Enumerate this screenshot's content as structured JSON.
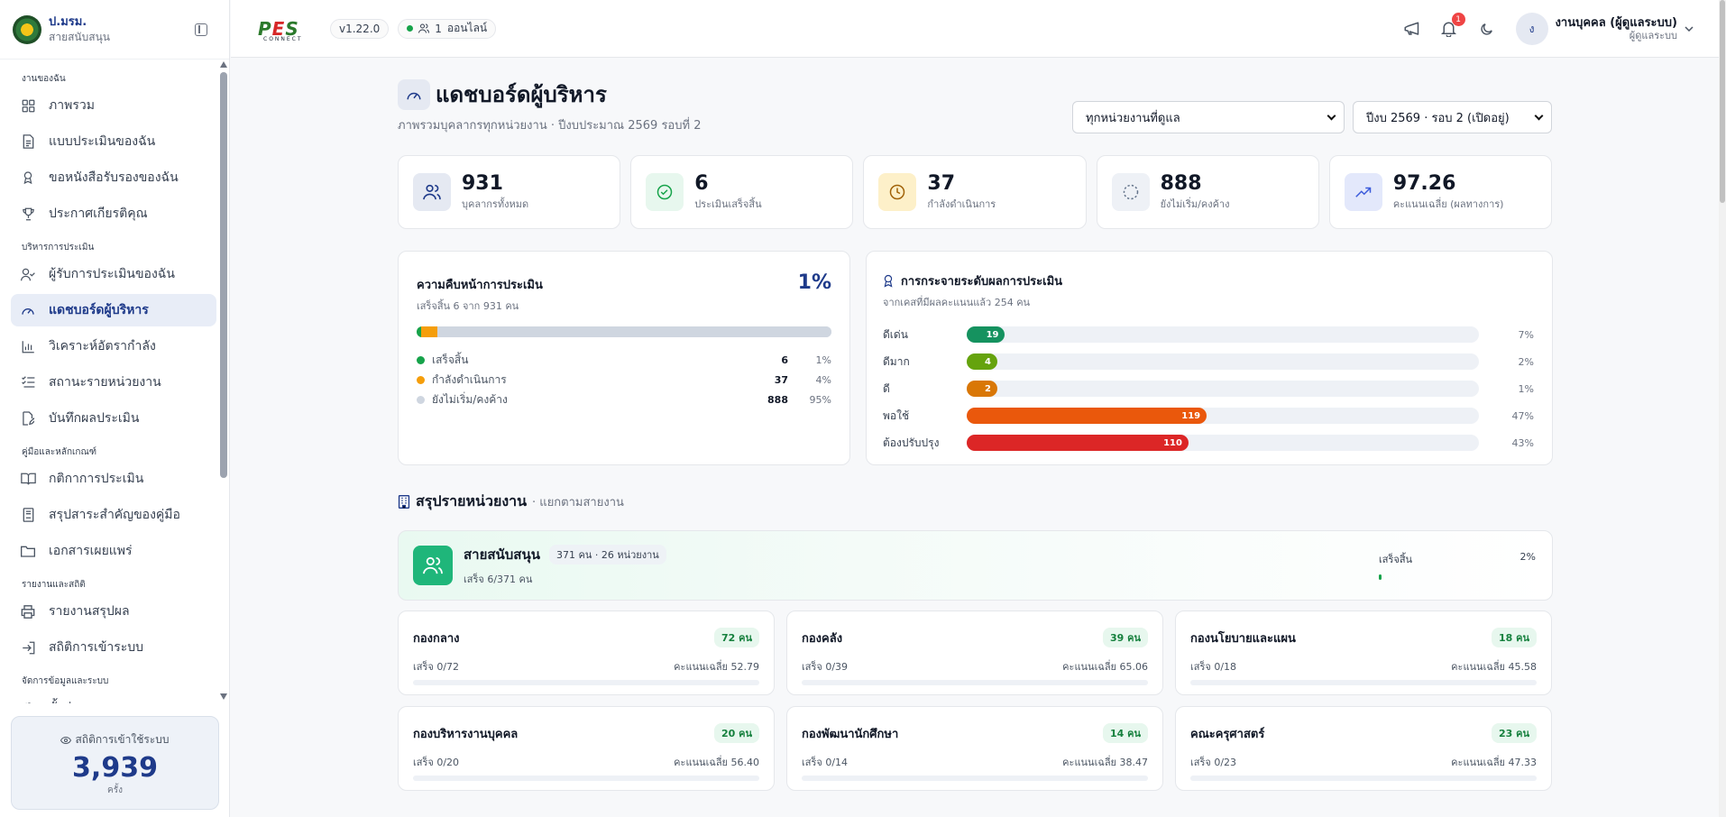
{
  "sidebar": {
    "org_name": "ป.มรม.",
    "org_sub": "สายสนับสนุน",
    "sections": [
      {
        "title": "งานของฉัน",
        "items": [
          {
            "label": "ภาพรวม",
            "icon": "grid-icon"
          },
          {
            "label": "แบบประเมินของฉัน",
            "icon": "document-icon"
          },
          {
            "label": "ขอหนังสือรับรองของฉัน",
            "icon": "award-icon"
          },
          {
            "label": "ประกาศเกียรติคุณ",
            "icon": "trophy-icon"
          }
        ]
      },
      {
        "title": "บริหารการประเมิน",
        "items": [
          {
            "label": "ผู้รับการประเมินของฉัน",
            "icon": "user-check-icon"
          },
          {
            "label": "แดชบอร์ดผู้บริหาร",
            "icon": "gauge-icon",
            "active": true
          },
          {
            "label": "วิเคราะห์อัตรากำลัง",
            "icon": "bar-chart-icon"
          },
          {
            "label": "สถานะรายหน่วยงาน",
            "icon": "list-check-icon"
          },
          {
            "label": "บันทึกผลประเมิน",
            "icon": "edit-doc-icon"
          }
        ]
      },
      {
        "title": "คู่มือและหลักเกณฑ์",
        "items": [
          {
            "label": "กติกาการประเมิน",
            "icon": "book-icon"
          },
          {
            "label": "สรุปสาระสำคัญของคู่มือ",
            "icon": "notebook-icon"
          },
          {
            "label": "เอกสารเผยแพร่",
            "icon": "folder-icon"
          }
        ]
      },
      {
        "title": "รายงานและสถิติ",
        "items": [
          {
            "label": "รายงานสรุปผล",
            "icon": "printer-icon"
          },
          {
            "label": "สถิติการเข้าระบบ",
            "icon": "login-icon"
          }
        ]
      },
      {
        "title": "จัดการข้อมูลและระบบ",
        "items": [
          {
            "label": "ตั้งค่าระบบ",
            "icon": "gear-icon"
          }
        ]
      }
    ],
    "login_stats": {
      "label": "สถิติการเข้าใช้ระบบ",
      "value": "3,939",
      "unit": "ครั้ง"
    }
  },
  "topbar": {
    "brand_main": "P",
    "brand_mid": "E",
    "brand_end": "S",
    "brand_sub": "CONNECT",
    "version": "v1.22.0",
    "online_count": "1",
    "online_label": "ออนไลน์",
    "notification_count": "1",
    "user_initial": "ง",
    "user_name": "งานบุคคล (ผู้ดูแลระบบ)",
    "user_role": "ผู้ดูแลระบบ"
  },
  "page": {
    "title": "แดชบอร์ดผู้บริหาร",
    "subtitle": "ภาพรวมบุคลากรทุกหน่วยงาน · ปีงบประมาณ 2569 รอบที่ 2",
    "filter_unit": "ทุกหน่วยงานที่ดูแล",
    "filter_period": "ปีงบ 2569 · รอบ 2 (เปิดอยู่)"
  },
  "kpis": [
    {
      "value": "931",
      "label": "บุคลากรทั้งหมด",
      "icon": "users-icon",
      "bg": "#e5e9f2",
      "fg": "#1e3a8a"
    },
    {
      "value": "6",
      "label": "ประเมินเสร็จสิ้น",
      "icon": "check-circle-icon",
      "bg": "#e7f7ee",
      "fg": "#16a34a"
    },
    {
      "value": "37",
      "label": "กำลังดำเนินการ",
      "icon": "clock-icon",
      "bg": "#fdf0c9",
      "fg": "#a16207"
    },
    {
      "value": "888",
      "label": "ยังไม่เริ่ม/คงค้าง",
      "icon": "dashed-circle-icon",
      "bg": "#eef1f6",
      "fg": "#64748b"
    },
    {
      "value": "97.26",
      "label": "คะแนนเฉลี่ย (ผลทางการ)",
      "icon": "trend-up-icon",
      "bg": "#e3e8fb",
      "fg": "#3b5bdb"
    }
  ],
  "progress": {
    "title": "ความคืบหน้าการประเมิน",
    "subtitle": "เสร็จสิ้น 6 จาก 931 คน",
    "percent": "1%",
    "total": 931,
    "legend": [
      {
        "label": "เสร็จสิ้น",
        "count": "6",
        "pct": "1%",
        "value": 6,
        "color": "#16a34a"
      },
      {
        "label": "กำลังดำเนินการ",
        "count": "37",
        "pct": "4%",
        "value": 37,
        "color": "#f59e0b"
      },
      {
        "label": "ยังไม่เริ่ม/คงค้าง",
        "count": "888",
        "pct": "95%",
        "value": 888,
        "color": "#cfd6e0"
      }
    ]
  },
  "distribution": {
    "title": "การกระจายระดับผลการประเมิน",
    "subtitle": "จากเคสที่มีผลคะแนนแล้ว 254 คน",
    "total": 254,
    "rows": [
      {
        "label": "ดีเด่น",
        "count": 19,
        "count_label": "19",
        "pct": "7%",
        "color": "#15925f"
      },
      {
        "label": "ดีมาก",
        "count": 4,
        "count_label": "4",
        "pct": "2%",
        "color": "#65a30d"
      },
      {
        "label": "ดี",
        "count": 2,
        "count_label": "2",
        "pct": "1%",
        "color": "#d97706"
      },
      {
        "label": "พอใช้",
        "count": 119,
        "count_label": "119",
        "pct": "47%",
        "color": "#ea580c"
      },
      {
        "label": "ต้องปรับปรุง",
        "count": 110,
        "count_label": "110",
        "pct": "43%",
        "color": "#dc2626"
      }
    ]
  },
  "units_section": {
    "title": "สรุปรายหน่วยงาน",
    "subtitle": "· แยกตามสายงาน",
    "division": {
      "name": "สายสนับสนุน",
      "meta": "371 คน · 26 หน่วยงาน",
      "sub": "เสร็จ 6/371 คน",
      "progress_label": "เสร็จสิ้น",
      "progress_pct": "2%",
      "progress_value": 0.02
    },
    "units": [
      {
        "name": "กองกลาง",
        "count": "72 คน",
        "done": "เสร็จ 0/72",
        "avg": "คะแนนเฉลี่ย 52.79"
      },
      {
        "name": "กองคลัง",
        "count": "39 คน",
        "done": "เสร็จ 0/39",
        "avg": "คะแนนเฉลี่ย 65.06"
      },
      {
        "name": "กองนโยบายและแผน",
        "count": "18 คน",
        "done": "เสร็จ 0/18",
        "avg": "คะแนนเฉลี่ย 45.58"
      },
      {
        "name": "กองบริหารงานบุคคล",
        "count": "20 คน",
        "done": "เสร็จ 0/20",
        "avg": "คะแนนเฉลี่ย 56.40"
      },
      {
        "name": "กองพัฒนานักศึกษา",
        "count": "14 คน",
        "done": "เสร็จ 0/14",
        "avg": "คะแนนเฉลี่ย 38.47"
      },
      {
        "name": "คณะครุศาสตร์",
        "count": "23 คน",
        "done": "เสร็จ 0/23",
        "avg": "คะแนนเฉลี่ย 47.33"
      }
    ]
  }
}
